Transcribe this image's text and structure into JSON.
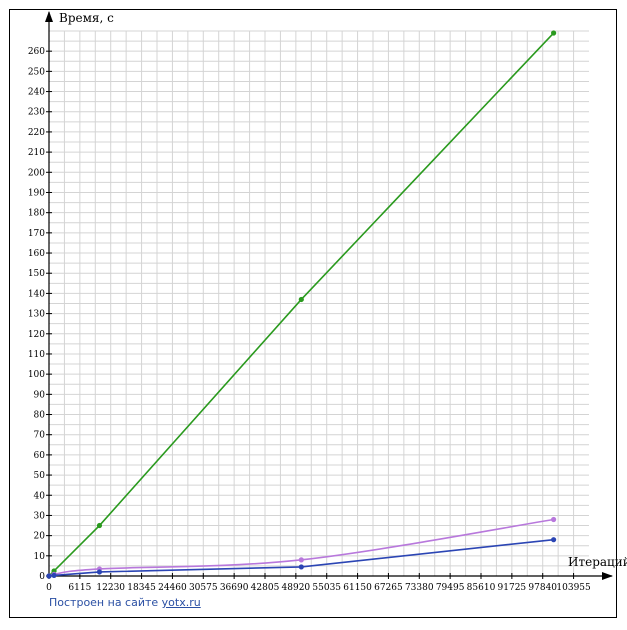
{
  "chart_data": {
    "type": "line",
    "ylabel": "Время, с",
    "xlabel": "Итераций",
    "x_ticks": [
      0,
      6115,
      12230,
      18345,
      24460,
      30575,
      36690,
      42805,
      48920,
      55035,
      61150,
      67265,
      73380,
      79495,
      85610,
      91725,
      97840,
      103955
    ],
    "y_ticks": [
      0,
      10,
      20,
      30,
      40,
      50,
      60,
      70,
      80,
      90,
      100,
      110,
      120,
      130,
      140,
      150,
      160,
      170,
      180,
      190,
      200,
      210,
      220,
      230,
      240,
      250,
      260
    ],
    "xlim": [
      0,
      107012
    ],
    "ylim": [
      0,
      270
    ],
    "grid": true,
    "series": [
      {
        "color": "#2a9a1e",
        "smooth": false,
        "points": [
          [
            0,
            0
          ],
          [
            1000,
            2.5
          ],
          [
            10000,
            25
          ],
          [
            50000,
            137
          ],
          [
            100000,
            269
          ]
        ]
      },
      {
        "color": "#b878dc",
        "smooth": true,
        "points": [
          [
            0,
            0
          ],
          [
            1000,
            0.8
          ],
          [
            10000,
            3.5
          ],
          [
            50000,
            8
          ],
          [
            100000,
            28
          ]
        ]
      },
      {
        "color": "#2b45b4",
        "smooth": false,
        "points": [
          [
            0,
            0
          ],
          [
            1000,
            0.3
          ],
          [
            10000,
            2
          ],
          [
            50000,
            4.5
          ],
          [
            100000,
            18
          ]
        ]
      }
    ]
  },
  "credit": {
    "text": "Построен на сайте",
    "link": "yotx.ru"
  }
}
